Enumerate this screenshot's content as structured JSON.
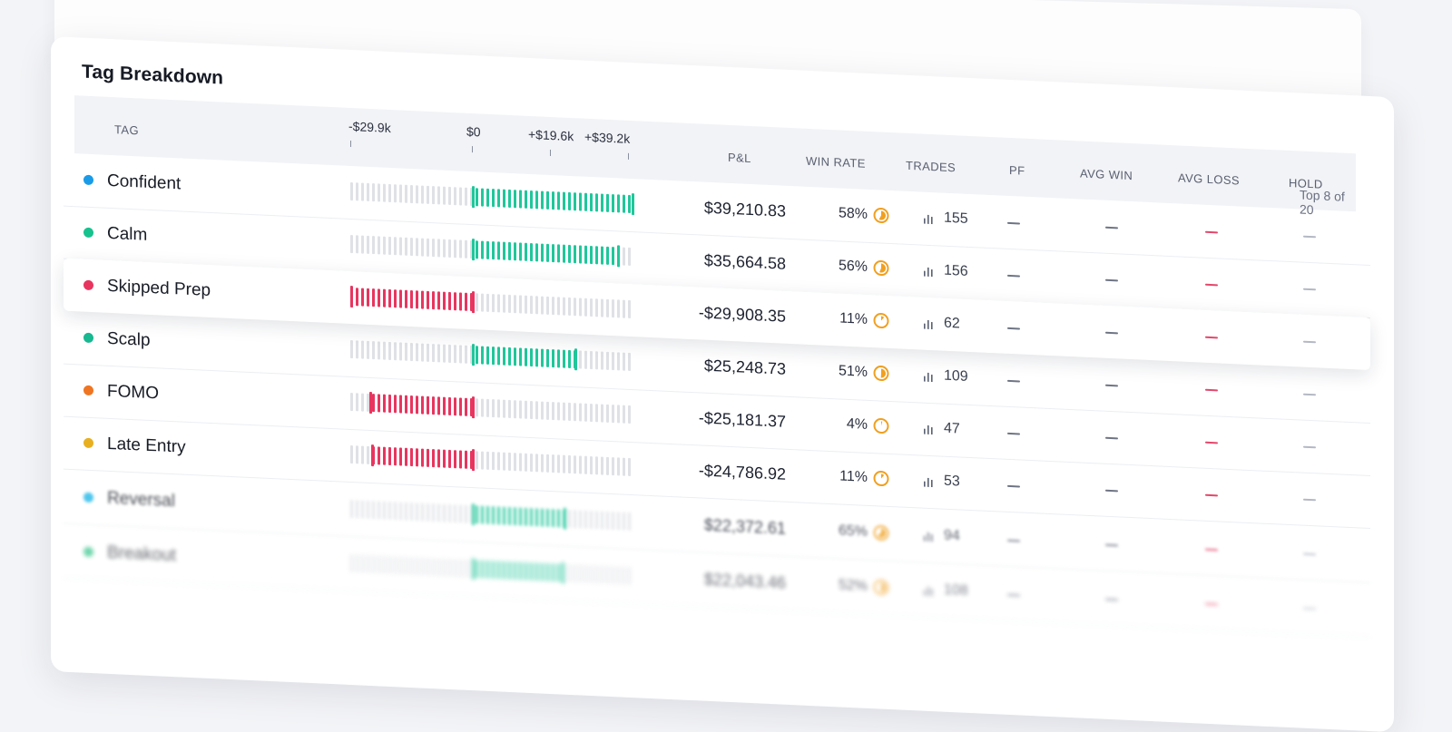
{
  "panel": {
    "title": "Tag Breakdown",
    "top_n_label": "Top 8 of 20"
  },
  "axis": {
    "min_label": "-$29.9k",
    "zero_label": "$0",
    "mid_label": "+$19.6k",
    "max_label": "+$39.2k",
    "min_value": -29900,
    "max_value": 39200
  },
  "columns": {
    "tag": "TAG",
    "pnl": "P&L",
    "win_rate": "WIN RATE",
    "trades": "TRADES",
    "pf": "PF",
    "avg_win": "AVG WIN",
    "avg_loss": "AVG LOSS",
    "hold": "HOLD"
  },
  "colors": {
    "positive": "#1fc79a",
    "negative": "#e8355f",
    "track": "#dfe1e6",
    "win_icon": "#f0a020"
  },
  "rows": [
    {
      "tag": "Confident",
      "dot": "#1a9be8",
      "pnl": "$39,210.83",
      "value": 39210.83,
      "win": "58%",
      "win_frac": 0.58,
      "trades": "155",
      "pf": "—",
      "avg_win": "—",
      "avg_loss": "—",
      "hold": "—"
    },
    {
      "tag": "Calm",
      "dot": "#18c28f",
      "pnl": "$35,664.58",
      "value": 35664.58,
      "win": "56%",
      "win_frac": 0.56,
      "trades": "156",
      "pf": "—",
      "avg_win": "—",
      "avg_loss": "—",
      "hold": "—"
    },
    {
      "tag": "Skipped Prep",
      "dot": "#e8355f",
      "pnl": "-$29,908.35",
      "value": -29908.35,
      "win": "11%",
      "win_frac": 0.11,
      "trades": "62",
      "pf": "—",
      "avg_win": "—",
      "avg_loss": "—",
      "hold": "—"
    },
    {
      "tag": "Scalp",
      "dot": "#18b890",
      "pnl": "$25,248.73",
      "value": 25248.73,
      "win": "51%",
      "win_frac": 0.51,
      "trades": "109",
      "pf": "—",
      "avg_win": "—",
      "avg_loss": "—",
      "hold": "—"
    },
    {
      "tag": "FOMO",
      "dot": "#f07522",
      "pnl": "-$25,181.37",
      "value": -25181.37,
      "win": "4%",
      "win_frac": 0.04,
      "trades": "47",
      "pf": "—",
      "avg_win": "—",
      "avg_loss": "—",
      "hold": "—"
    },
    {
      "tag": "Late Entry",
      "dot": "#e8b020",
      "pnl": "-$24,786.92",
      "value": -24786.92,
      "win": "11%",
      "win_frac": 0.11,
      "trades": "53",
      "pf": "—",
      "avg_win": "—",
      "avg_loss": "—",
      "hold": "—"
    },
    {
      "tag": "Reversal",
      "dot": "#22b8e8",
      "pnl": "$22,372.61",
      "value": 22372.61,
      "win": "65%",
      "win_frac": 0.65,
      "trades": "94",
      "pf": "—",
      "avg_win": "—",
      "avg_loss": "—",
      "hold": "—"
    },
    {
      "tag": "Breakout",
      "dot": "#22c080",
      "pnl": "$22,043.46",
      "value": 22043.46,
      "win": "52%",
      "win_frac": 0.52,
      "trades": "108",
      "pf": "—",
      "avg_win": "—",
      "avg_loss": "—",
      "hold": "—"
    }
  ]
}
